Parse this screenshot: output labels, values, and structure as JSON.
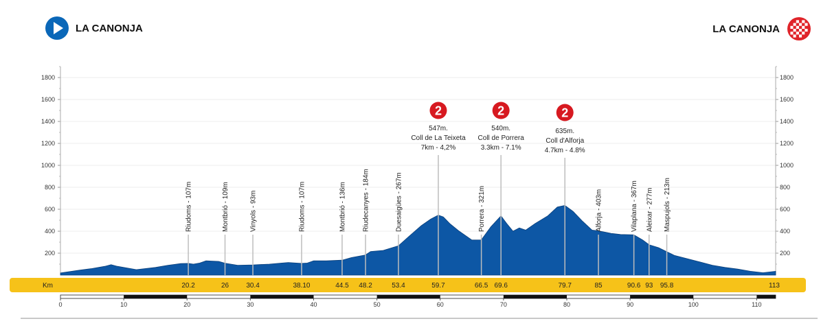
{
  "header": {
    "start_name": "LA CANONJA",
    "finish_name": "LA CANONJA"
  },
  "colors": {
    "profile_fill": "#0d57a5",
    "km_bar": "#f6c219",
    "start_icon": "#0a67b8",
    "finish_icon": "#e0242a",
    "category_badge": "#d71920"
  },
  "icons": {
    "start": "play-triangle-icon",
    "finish": "checkered-flag-icon",
    "climb": "category-2-badge-icon"
  },
  "km_bar_label": "Km",
  "chart_data": {
    "type": "area",
    "title": "",
    "xlabel": "",
    "ylabel": "",
    "xlim": [
      0,
      113
    ],
    "ylim": [
      0,
      1900
    ],
    "y_ticks": [
      "200",
      "400",
      "600",
      "800",
      "1000",
      "1200",
      "1400",
      "1600",
      "1800"
    ],
    "x_ticks": [
      "0",
      "10",
      "20",
      "30",
      "40",
      "50",
      "60",
      "70",
      "80",
      "90",
      "100",
      "110"
    ],
    "grid": true,
    "profile": [
      [
        0,
        20
      ],
      [
        3,
        45
      ],
      [
        5,
        60
      ],
      [
        7,
        80
      ],
      [
        8,
        95
      ],
      [
        9,
        80
      ],
      [
        11,
        60
      ],
      [
        12,
        50
      ],
      [
        15,
        70
      ],
      [
        17,
        90
      ],
      [
        19,
        105
      ],
      [
        20.2,
        107
      ],
      [
        21,
        100
      ],
      [
        22,
        110
      ],
      [
        23,
        130
      ],
      [
        25,
        125
      ],
      [
        26,
        109
      ],
      [
        28,
        90
      ],
      [
        30.4,
        93
      ],
      [
        33,
        100
      ],
      [
        35,
        110
      ],
      [
        36,
        115
      ],
      [
        38.1,
        107
      ],
      [
        39,
        110
      ],
      [
        40,
        130
      ],
      [
        42,
        130
      ],
      [
        44.5,
        136
      ],
      [
        46,
        160
      ],
      [
        48.2,
        184
      ],
      [
        49,
        215
      ],
      [
        51,
        225
      ],
      [
        53.4,
        267
      ],
      [
        55,
        350
      ],
      [
        57,
        450
      ],
      [
        58.5,
        510
      ],
      [
        59.7,
        547
      ],
      [
        60.5,
        530
      ],
      [
        61.5,
        470
      ],
      [
        63,
        400
      ],
      [
        65,
        320
      ],
      [
        66.5,
        321
      ],
      [
        68,
        440
      ],
      [
        69.6,
        540
      ],
      [
        70.5,
        470
      ],
      [
        71.5,
        400
      ],
      [
        72.5,
        430
      ],
      [
        73.5,
        410
      ],
      [
        75,
        470
      ],
      [
        77,
        540
      ],
      [
        78.5,
        620
      ],
      [
        79.7,
        635
      ],
      [
        81,
        580
      ],
      [
        82.5,
        490
      ],
      [
        84,
        410
      ],
      [
        85,
        403
      ],
      [
        87,
        380
      ],
      [
        88.5,
        370
      ],
      [
        90.6,
        367
      ],
      [
        92,
        320
      ],
      [
        93,
        277
      ],
      [
        94.5,
        250
      ],
      [
        95.8,
        213
      ],
      [
        97,
        180
      ],
      [
        99,
        150
      ],
      [
        101,
        120
      ],
      [
        103,
        90
      ],
      [
        105,
        70
      ],
      [
        107,
        55
      ],
      [
        109,
        35
      ],
      [
        111,
        22
      ],
      [
        113,
        35
      ]
    ],
    "waypoints": [
      {
        "km": 20.2,
        "km_label": "20.2",
        "label": "Riudoms - 107m"
      },
      {
        "km": 26,
        "km_label": "26",
        "label": "Montbrió - 109m"
      },
      {
        "km": 30.4,
        "km_label": "30.4",
        "label": "Vinyols - 93m"
      },
      {
        "km": 38.1,
        "km_label": "38.10",
        "label": "Riudoms - 107m"
      },
      {
        "km": 44.5,
        "km_label": "44.5",
        "label": "Montbrió - 136m"
      },
      {
        "km": 48.2,
        "km_label": "48.2",
        "label": "Riudecanyes - 184m"
      },
      {
        "km": 53.4,
        "km_label": "53.4",
        "label": "Duesaigües - 267m"
      },
      {
        "km": 66.5,
        "km_label": "66.5",
        "label": "Porrera - 321m"
      },
      {
        "km": 85,
        "km_label": "85",
        "label": "Alforja - 403m"
      },
      {
        "km": 90.6,
        "km_label": "90.6",
        "label": "Vilaplana - 367m"
      },
      {
        "km": 93,
        "km_label": "93",
        "label": "Aleixar - 277m"
      },
      {
        "km": 95.8,
        "km_label": "95.8",
        "label": "Maspujols - 213m"
      }
    ],
    "climbs": [
      {
        "km": 59.7,
        "km_label": "59.7",
        "category": "2",
        "lines": [
          "547m.",
          "Coll de La Teixeta",
          "7km - 4,2%"
        ]
      },
      {
        "km": 69.6,
        "km_label": "69.6",
        "category": "2",
        "lines": [
          "540m.",
          "Coll de Porrera",
          "3.3km - 7.1%"
        ]
      },
      {
        "km": 79.7,
        "km_label": "79.7",
        "category": "2",
        "lines": [
          "635m.",
          "Coll d'Alforja",
          "4.7km - 4.8%"
        ]
      }
    ],
    "finish_km_label": "113"
  }
}
